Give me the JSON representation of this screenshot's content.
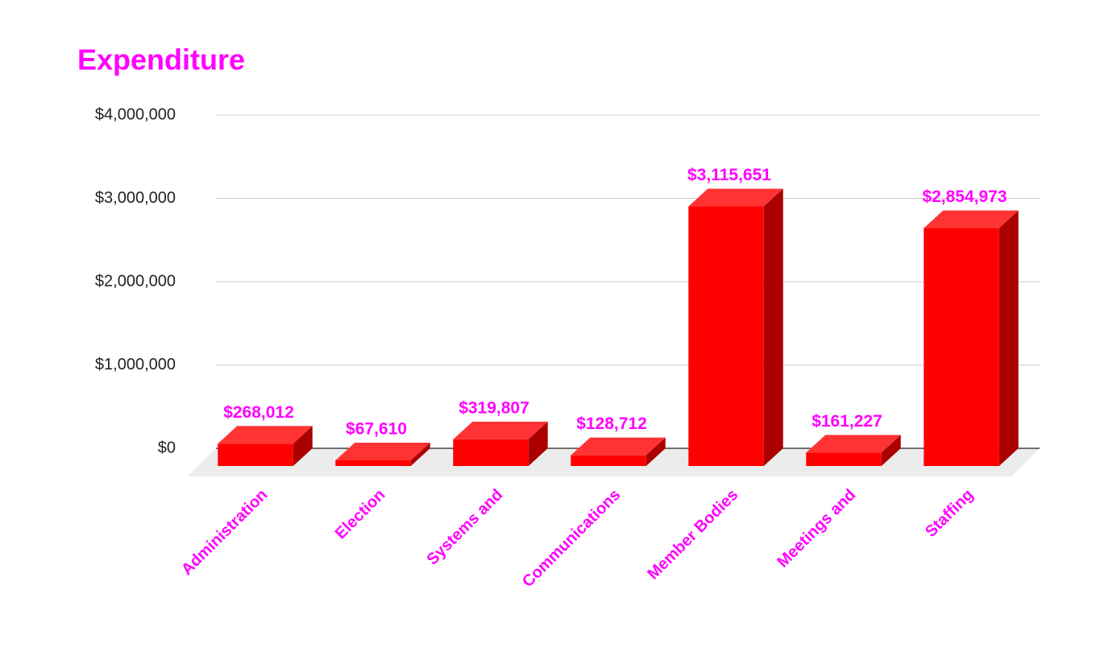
{
  "chart_data": {
    "type": "bar3d",
    "title": "Expenditure",
    "categories": [
      "Administration",
      "Election",
      "Systems and",
      "Communications",
      "Member Bodies",
      "Meetings and",
      "Staffing"
    ],
    "values": [
      268012,
      67610,
      319807,
      128712,
      3115651,
      161227,
      2854973
    ],
    "value_labels": [
      "$268,012",
      "$67,610",
      "$319,807",
      "$128,712",
      "$3,115,651",
      "$161,227",
      "$2,854,973"
    ],
    "color": "#ff0000",
    "ylim": [
      0,
      4000000
    ],
    "yticks": [
      {
        "value": 0,
        "label": "$0"
      },
      {
        "value": 1000000,
        "label": "$1,000,000"
      },
      {
        "value": 2000000,
        "label": "$2,000,000"
      },
      {
        "value": 3000000,
        "label": "$3,000,000"
      },
      {
        "value": 4000000,
        "label": "$4,000,000"
      }
    ],
    "grid": true
  }
}
